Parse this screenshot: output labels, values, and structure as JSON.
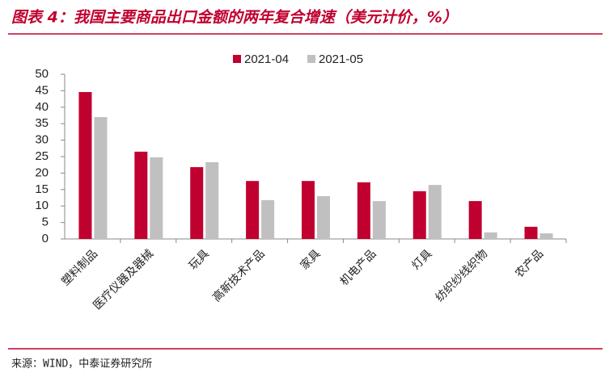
{
  "chart_data": {
    "type": "bar",
    "title": "图表 4：我国主要商品出口金额的两年复合增速（美元计价，%）",
    "source": "来源：WIND，中泰证券研究所",
    "categories": [
      "塑料制品",
      "医疗仪器及器械",
      "玩具",
      "高新技术产品",
      "家具",
      "机电产品",
      "灯具",
      "纺织纱线织物",
      "农产品"
    ],
    "series": [
      {
        "name": "2021-04",
        "color": "#c0002f",
        "values": [
          44.6,
          26.5,
          21.8,
          17.6,
          17.6,
          17.2,
          14.5,
          11.5,
          3.7
        ]
      },
      {
        "name": "2021-05",
        "color": "#c0c0c0",
        "values": [
          37.0,
          24.8,
          23.3,
          11.8,
          13.0,
          11.5,
          16.4,
          2.0,
          1.7
        ]
      }
    ],
    "ylim": [
      0,
      50
    ],
    "yticks": [
      0,
      5,
      10,
      15,
      20,
      25,
      30,
      35,
      40,
      45,
      50
    ],
    "grid": false,
    "legend": "top"
  }
}
